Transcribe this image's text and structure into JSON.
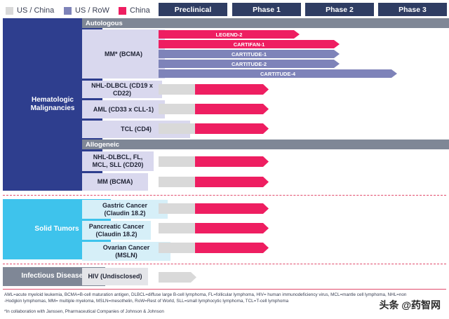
{
  "legend": [
    {
      "label": "US / China",
      "color": "#d9d9d9"
    },
    {
      "label": "US / RoW",
      "color": "#7e83b9"
    },
    {
      "label": "China",
      "color": "#ee1e61"
    }
  ],
  "phases": [
    "Preclinical",
    "Phase 1",
    "Phase 2",
    "Phase 3"
  ],
  "categories": {
    "heme": "Hematologic Malignancies",
    "solid": "Solid Tumors",
    "infect": "Infectious Diseases"
  },
  "sections": {
    "autologous": "Autologous",
    "allogeneic": "Allogeneic"
  },
  "indications": {
    "mm_bcma": "MM* (BCMA)",
    "nhl_cd19": "NHL-DLBCL (CD19 x CD22)",
    "aml": "AML (CD33 x CLL-1)",
    "tcl": "TCL (CD4)",
    "nhl_cd20": "NHL-DLBCL, FL, MCL, SLL (CD20)",
    "mm_allo": "MM (BCMA)",
    "gastric": "Gastric Cancer (Claudin 18.2)",
    "pancreatic": "Pancreatic Cancer (Claudin 18.2)",
    "ovarian": "Ovarian Cancer (MSLN)",
    "hiv": "HIV (Undisclosed)"
  },
  "trials": {
    "legend2": "LEGEND-2",
    "cartifan1": "CARTIFAN-1",
    "cartitude1": "CARTITUDE-1",
    "cartitude2": "CARTITUDE-2",
    "cartitude4": "CARTITUDE-4"
  },
  "footnotes": {
    "line1": "AML=acute myeloid leukemia, BCMA=B-cell maturation antigen, DLBCL=diffuse large B-cell lymphoma, FL=follicular lymphoma, HIV= human immunodeficiency virus, MCL=mantle cell lymphoma, NHL=non",
    "line2": "-Hodgkin lymphomas, MM= multiple myeloma, MSLN=mesothelin, RoW=Rest of World, SLL=small lymphocytic lymphoma, TCL=T-cell lymphoma",
    "line3": "*In collaboration with Janssen, Pharmaceutical Companies of Johnson & Johnson"
  },
  "watermark": "头条 @药智网"
}
